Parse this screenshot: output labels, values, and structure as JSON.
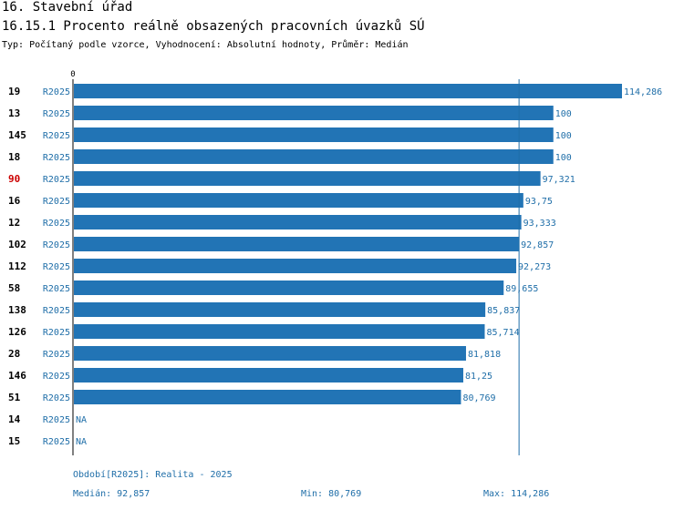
{
  "header": {
    "title": "16. Stavební úřad",
    "subtitle": "16.15.1 Procento reálně obsazených pracovních úvazků SÚ",
    "type_line": "Typ: Počítaný podle vzorce, Vyhodnocení: Absolutní hodnoty, Průměr: Medián"
  },
  "colors": {
    "bar": "#2274b5",
    "label_blue": "#1f6ea8",
    "highlight": "#cc0000",
    "text": "#000000",
    "axis": "#000000",
    "median_line": "#1f6ea8"
  },
  "chart_data": {
    "type": "bar",
    "orientation": "horizontal",
    "x_axis_min_label": "0",
    "xlim": [
      0,
      114.286
    ],
    "median": 92.857,
    "highlight_category": "90",
    "categories": [
      "19",
      "13",
      "145",
      "18",
      "90",
      "16",
      "12",
      "102",
      "112",
      "58",
      "138",
      "126",
      "28",
      "146",
      "51",
      "14",
      "15"
    ],
    "period_labels": [
      "R2025",
      "R2025",
      "R2025",
      "R2025",
      "R2025",
      "R2025",
      "R2025",
      "R2025",
      "R2025",
      "R2025",
      "R2025",
      "R2025",
      "R2025",
      "R2025",
      "R2025",
      "R2025",
      "R2025"
    ],
    "values": [
      114.286,
      100,
      100,
      100,
      97.321,
      93.75,
      93.333,
      92.857,
      92.273,
      89.655,
      85.837,
      85.714,
      81.818,
      81.25,
      80.769,
      null,
      null
    ],
    "value_labels": [
      "114,286",
      "100",
      "100",
      "100",
      "97,321",
      "93,75",
      "93,333",
      "92,857",
      "92,273",
      "89,655",
      "85,837",
      "85,714",
      "81,818",
      "81,25",
      "80,769",
      "NA",
      "NA"
    ]
  },
  "footer": {
    "period": "Období[R2025]: Realita - 2025",
    "median": "Medián: 92,857",
    "min": "Min: 80,769",
    "max": "Max: 114,286"
  }
}
